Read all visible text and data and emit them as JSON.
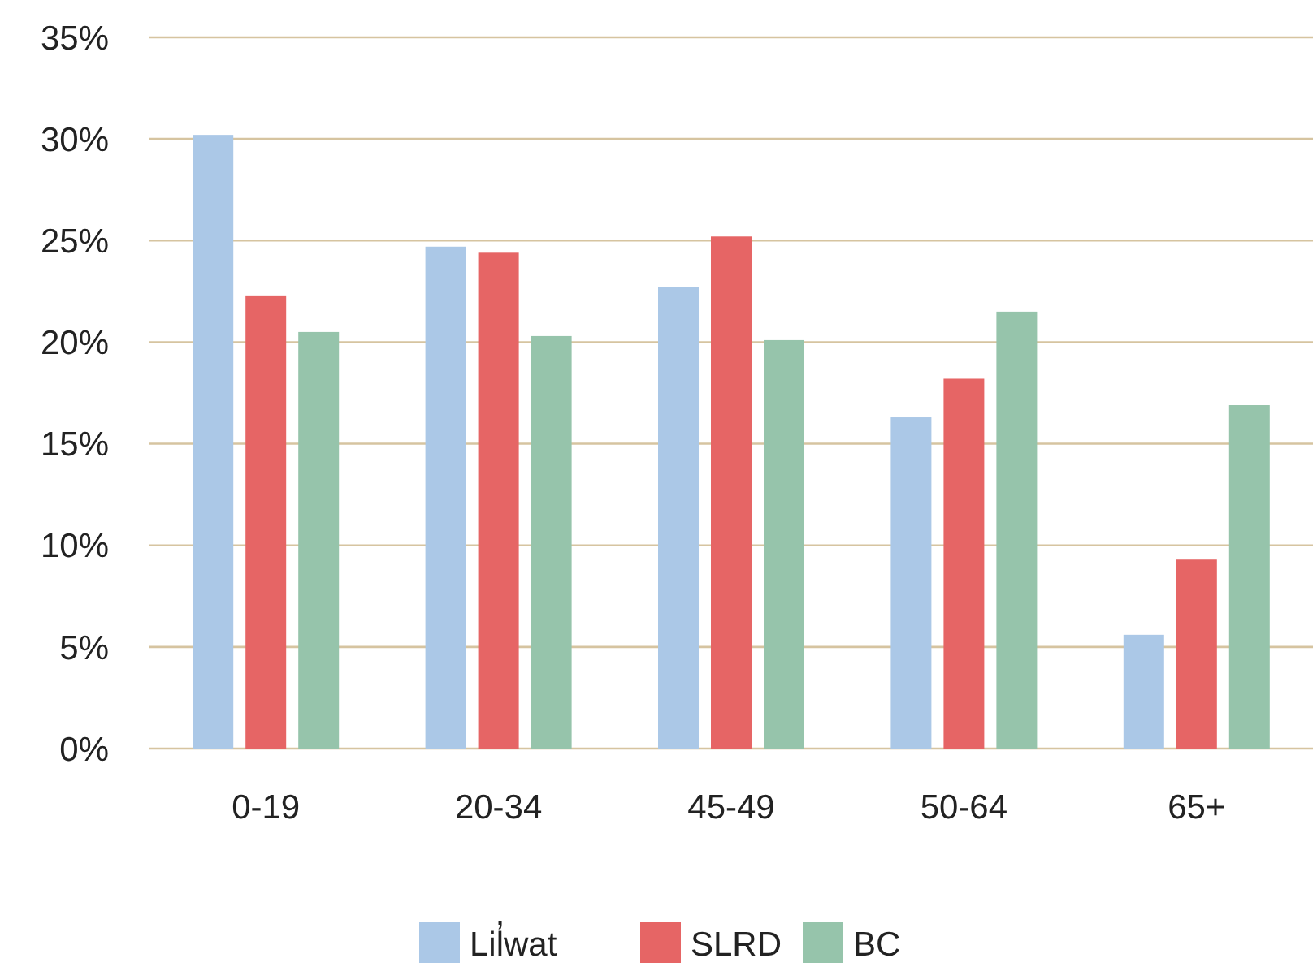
{
  "chart_data": {
    "type": "bar",
    "categories": [
      "0-19",
      "20-34",
      "45-49",
      "50-64",
      "65+"
    ],
    "series": [
      {
        "name": "Lil̓wat",
        "color": "#abc8e7",
        "values": [
          30.2,
          24.7,
          22.7,
          16.3,
          5.6
        ]
      },
      {
        "name": "SLRD",
        "color": "#e66565",
        "values": [
          22.3,
          24.4,
          25.2,
          18.2,
          9.3
        ]
      },
      {
        "name": "BC",
        "color": "#96c4ab",
        "values": [
          20.5,
          20.3,
          20.1,
          21.5,
          16.9
        ]
      }
    ],
    "ylim": [
      0,
      35
    ],
    "yticks": [
      {
        "value": 0,
        "label": "0%"
      },
      {
        "value": 5,
        "label": "5%"
      },
      {
        "value": 10,
        "label": "10%"
      },
      {
        "value": 15,
        "label": "15%"
      },
      {
        "value": 20,
        "label": "20%"
      },
      {
        "value": 25,
        "label": "25%"
      },
      {
        "value": 30,
        "label": "30%"
      },
      {
        "value": 35,
        "label": "35%"
      }
    ],
    "grid": "y",
    "legend": "bottom"
  }
}
